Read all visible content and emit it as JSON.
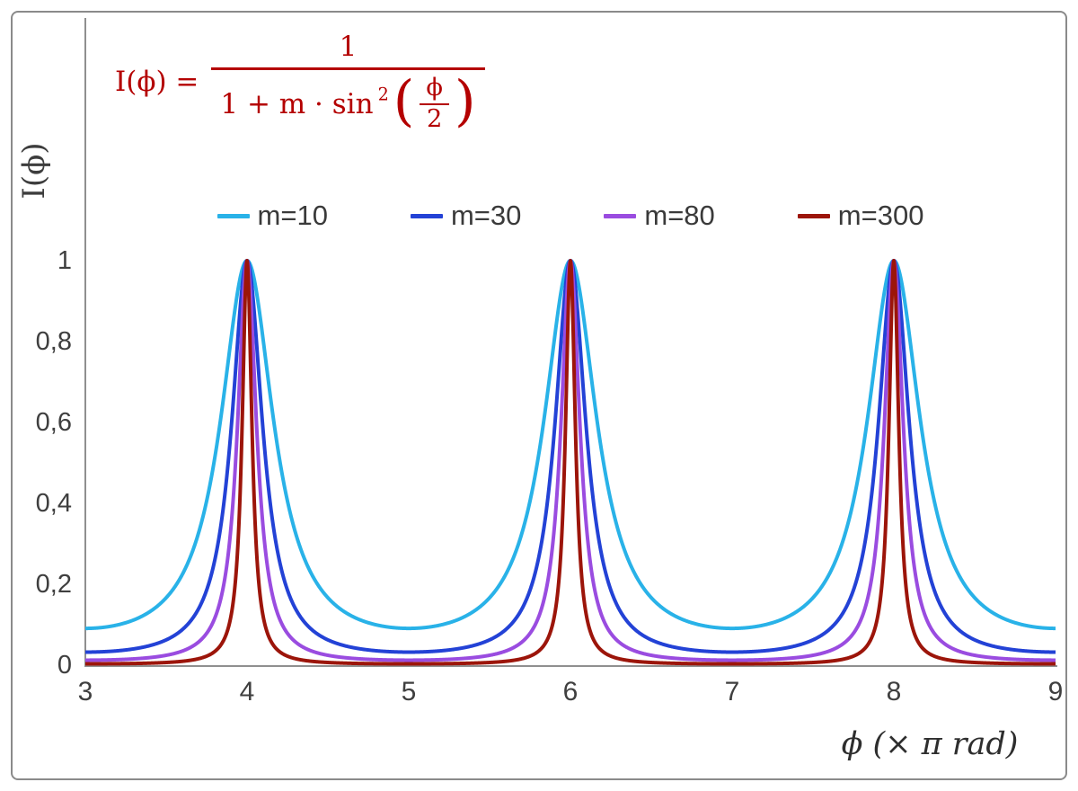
{
  "chart_data": {
    "type": "line",
    "function": "I(phi) = 1 / (1 + m * sin^2(phi/2)), phi = x * pi",
    "xlim": [
      3,
      9
    ],
    "ylim": [
      0,
      1
    ],
    "x_ticks": [
      "3",
      "4",
      "5",
      "6",
      "7",
      "8",
      "9"
    ],
    "y_ticks": [
      "0",
      "0,2",
      "0,4",
      "0,6",
      "0,8",
      "1"
    ],
    "xlabel": "ϕ  (× π rad)",
    "ylabel": "I(ϕ)",
    "grid": false,
    "legend_position": "top-center",
    "peaks_at_x": [
      4,
      6,
      8
    ],
    "peak_value": 1,
    "series": [
      {
        "name": "m=10",
        "m": 10,
        "color": "#29b2e8"
      },
      {
        "name": "m=30",
        "m": 30,
        "color": "#2342d6"
      },
      {
        "name": "m=80",
        "m": 80,
        "color": "#9a4ce0"
      },
      {
        "name": "m=300",
        "m": 300,
        "color": "#9c150a"
      }
    ],
    "axis_color": "#8f8f8f"
  },
  "formula": {
    "lhs": "I(ϕ) =",
    "numerator": "1",
    "den_text": "1 + m · sin",
    "den_sup": "2",
    "inner_num": "ϕ",
    "inner_den": "2",
    "color": "#b40000"
  }
}
